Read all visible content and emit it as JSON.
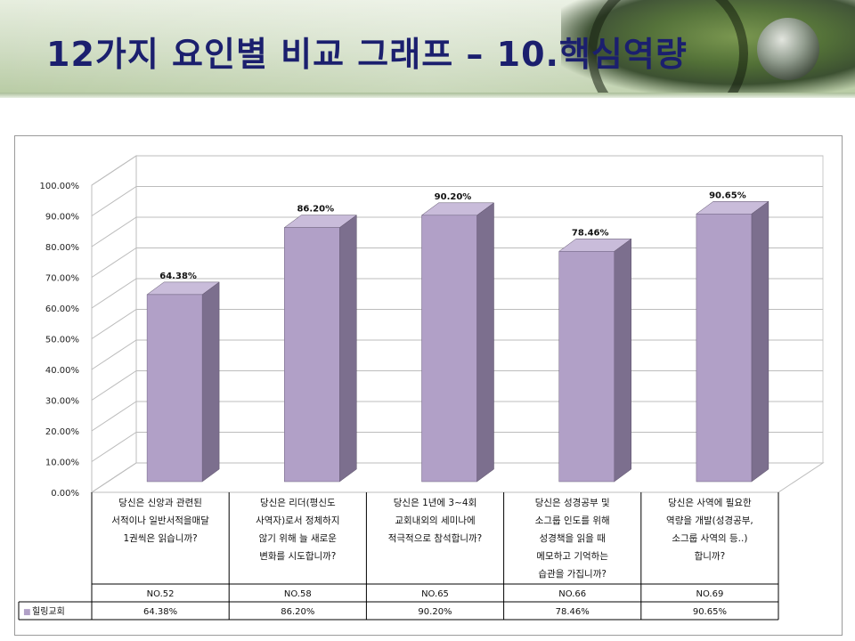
{
  "page": {
    "title": "12가지 요인별 비교 그래프 – 10.핵심역량"
  },
  "colors": {
    "title": "#1b1f6e",
    "bar_front": "#b1a0c7",
    "bar_side": "#7c6f8e",
    "bar_top": "#c9bcda"
  },
  "chart_data": {
    "type": "bar",
    "ylim": [
      0,
      100
    ],
    "yticks": [
      "0.00%",
      "10.00%",
      "20.00%",
      "30.00%",
      "40.00%",
      "50.00%",
      "60.00%",
      "70.00%",
      "80.00%",
      "90.00%",
      "100.00%"
    ],
    "categories": [
      [
        "당신은 신앙과 관련된",
        "서적이나 일반서적을매달",
        "1권씩은 읽습니까?"
      ],
      [
        "당신은 리더(평신도",
        "사역자)로서 정체하지",
        "않기 위해 늘 새로운",
        "변화를 시도합니까?"
      ],
      [
        "당신은 1년에 3~4회",
        "교회내외의 세미나에",
        "적극적으로 참석합니까?"
      ],
      [
        "당신은 성경공부 및",
        "소그룹 인도를 위해",
        "성경책을 읽을 때",
        "메모하고 기억하는",
        "습관을 가집니까?"
      ],
      [
        "당신은 사역에 필요한",
        "역량을 개발(성경공부,",
        "소그룹 사역의 등..)",
        "합니까?"
      ]
    ],
    "codes": [
      "NO.52",
      "NO.58",
      "NO.65",
      "NO.66",
      "NO.69"
    ],
    "series": [
      {
        "name": "힐링교회",
        "values": [
          64.38,
          86.2,
          90.2,
          78.46,
          90.65
        ],
        "labels": [
          "64.38%",
          "86.20%",
          "90.20%",
          "78.46%",
          "90.65%"
        ]
      }
    ],
    "legend_marker": "■",
    "grid": true,
    "legend": "table-left"
  }
}
